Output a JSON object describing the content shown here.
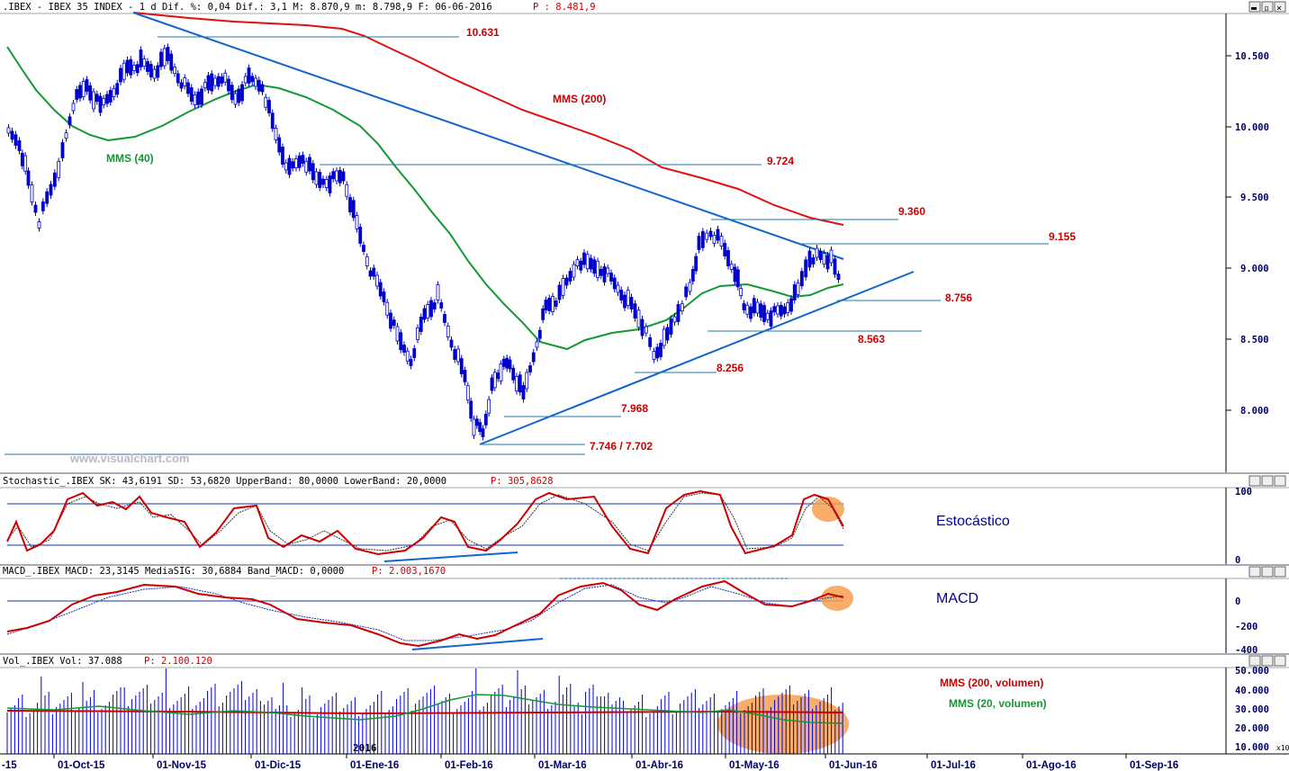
{
  "panels": {
    "price": {
      "header": ".IBEX - IBEX 35 INDEX -  1 d Dif. %: 0,04 Dif.: 3,1 M: 8.870,9 m: 8.798,9 F: 06-06-2016",
      "header_p": "P : 8.481,9",
      "watermark": "www.visualchart.com",
      "axis_ticks": [
        "10.500",
        "10.000",
        "9.500",
        "9.000",
        "8.500",
        "8.000"
      ],
      "labels": {
        "mms200": "MMS (200)",
        "mms40": "MMS (40)",
        "l10631": "10.631",
        "l9724": "9.724",
        "l9360": "9.360",
        "l9155": "9.155",
        "l8756": "8.756",
        "l8563": "8.563",
        "l8256": "8.256",
        "l7968": "7.968",
        "l7746": "7.746 / 7.702"
      }
    },
    "stoch": {
      "header": "Stochastic_.IBEX SK: 43,6191 SD: 53,6820 UpperBand: 80,0000 LowerBand: 20,0000",
      "header_p": "P: 305,8628",
      "axis_ticks": [
        "100",
        "0"
      ],
      "label": "Estocástico"
    },
    "macd": {
      "header": "MACD_.IBEX MACD: 23,3145 MediaSIG: 30,6884 Band_MACD: 0,0000",
      "header_p": "P: 2.003,1670",
      "axis_ticks": [
        "0",
        "-200",
        "-400"
      ],
      "label": "MACD"
    },
    "vol": {
      "header": "Vol_.IBEX Vol: 37.088",
      "header_p": "P: 2.100.120",
      "axis_ticks": [
        "50.000",
        "40.000",
        "30.000",
        "20.000",
        "10.000"
      ],
      "axis_unit": "x10",
      "year_label": "2016",
      "label_mms200": "MMS (200, volumen)",
      "label_mms20": "MMS (20, volumen)"
    }
  },
  "x_axis": [
    "-15",
    "01-Oct-15",
    "01-Nov-15",
    "01-Dic-15",
    "01-Ene-16",
    "01-Feb-16",
    "01-Mar-16",
    "01-Abr-16",
    "01-May-16",
    "01-Jun-16",
    "01-Jul-16",
    "01-Ago-16",
    "01-Sep-16"
  ],
  "colors": {
    "candle": "#0000cc",
    "mms200": "#dd1111",
    "mms40": "#119933",
    "trend": "#1166cc",
    "label_red": "#cc0000",
    "label_green": "#119933",
    "highlight": "#f5a050"
  },
  "chart_data": {
    "type": "candlestick",
    "price_levels": [
      10631,
      9724,
      9360,
      9155,
      8756,
      8563,
      8256,
      7968,
      7746,
      7702
    ],
    "y_range_price": [
      7600,
      10750
    ],
    "stochastic_bands": [
      80,
      20
    ],
    "macd_zero": 0,
    "volume_range": [
      0,
      50000
    ]
  }
}
